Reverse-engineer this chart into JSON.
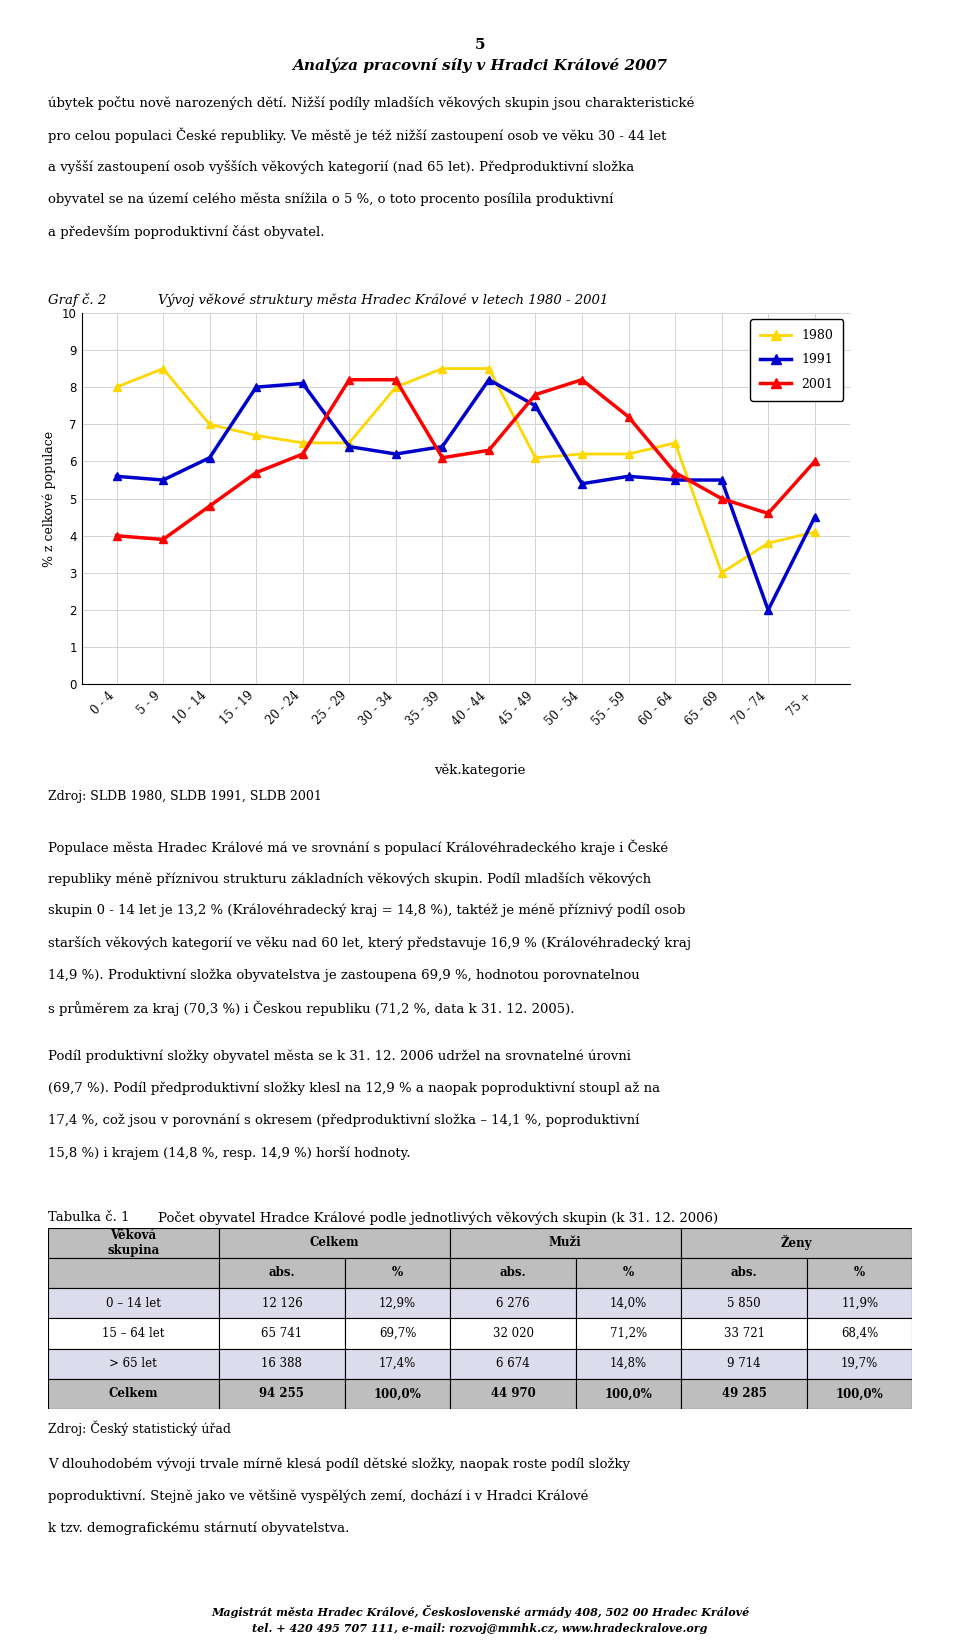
{
  "page_num": "5",
  "page_title": "Analýza pracovní síly v Hradci Králové 2007",
  "graf_label": "Graf č. 2",
  "graf_title": "Vývoj věkové struktury města Hradec Králové v letech 1980 - 2001",
  "zdroj_graf": "Zdroj: SLDB 1980, SLDB 1991, SLDB 2001",
  "categories": [
    "0 - 4",
    "5 - 9",
    "10 - 14",
    "15 - 19",
    "20 - 24",
    "25 - 29",
    "30 - 34",
    "35 - 39",
    "40 - 44",
    "45 - 49",
    "50 - 54",
    "55 - 59",
    "60 - 64",
    "65 - 69",
    "70 - 74",
    "75 +"
  ],
  "data_1980": [
    8.0,
    8.5,
    7.0,
    6.7,
    6.5,
    6.5,
    8.0,
    8.5,
    8.5,
    6.1,
    6.2,
    6.2,
    6.5,
    3.0,
    3.8,
    4.1
  ],
  "data_1991": [
    5.6,
    5.5,
    6.1,
    8.0,
    8.1,
    6.4,
    6.2,
    6.4,
    8.2,
    7.5,
    5.4,
    5.6,
    5.5,
    5.5,
    2.0,
    4.5
  ],
  "data_2001": [
    4.0,
    3.9,
    4.8,
    5.7,
    6.2,
    8.2,
    8.2,
    6.1,
    6.3,
    7.8,
    8.2,
    7.2,
    5.7,
    5.0,
    4.6,
    6.0
  ],
  "color_1980": "#FFD700",
  "color_1991": "#0000CD",
  "color_2001": "#FF0000",
  "ylabel": "% z celkové populace",
  "xlabel": "věk.kategorie",
  "ylim": [
    0,
    10
  ],
  "yticks": [
    0,
    1,
    2,
    3,
    4,
    5,
    6,
    7,
    8,
    9,
    10
  ],
  "intro_lines": [
    "úbytek počtu nově narozených dětí. Nižší podíly mladších věkových skupin jsou charakteristické",
    "pro celou populaci České republiky. Ve městě je též nižší zastoupení osob ve věku 30 - 44 let",
    "a vyšší zastoupení osob vyšších věkových kategorií (nad 65 let). Předproduktivní složka",
    "obyvatel se na území celého města snížila o 5 %, o toto procento posílila produktivní",
    "a především poproduktivní část obyvatel."
  ],
  "para1_lines": [
    "Populace města Hradec Králové má ve srovnání s populací Královéhradeckého kraje i České",
    "republiky méně příznivou strukturu základních věkových skupin. Podíl mladších věkových",
    "skupin 0 - 14 let je 13,2 % (Královéhradecký kraj = 14,8 %), taktéž je méně příznivý podíl osob",
    "starších věkových kategorií ve věku nad 60 let, který představuje 16,9 % (Královéhradecký kraj",
    "14,9 %). Produktivní složka obyvatelstva je zastoupena 69,9 %, hodnotou porovnatelnou",
    "s průměrem za kraj (70,3 %) i Českou republiku (71,2 %, data k 31. 12. 2005)."
  ],
  "para2_lines": [
    "Podíl produktivní složky obyvatel města se k 31. 12. 2006 udržel na srovnatelné úrovni",
    "(69,7 %). Podíl předproduktivní složky klesl na 12,9 % a naopak poproduktivní stoupl až na",
    "17,4 %, což jsou v porovnání s okresem (předproduktivní složka – 14,1 %, poproduktivní",
    "15,8 %) i krajem (14,8 %, resp. 14,9 %) horší hodnoty."
  ],
  "tabulka_label": "Tabulka č. 1",
  "tabulka_title": "Počet obyvatel Hradce Králové podle jednotlivých věkových skupin (k 31. 12. 2006)",
  "table_header2": [
    "",
    "abs.",
    "%",
    "abs.",
    "%",
    "abs.",
    "%"
  ],
  "table_rows": [
    [
      "0 – 14 let",
      "12 126",
      "12,9%",
      "6 276",
      "14,0%",
      "5 850",
      "11,9%"
    ],
    [
      "15 – 64 let",
      "65 741",
      "69,7%",
      "32 020",
      "71,2%",
      "33 721",
      "68,4%"
    ],
    [
      "> 65 let",
      "16 388",
      "17,4%",
      "6 674",
      "14,8%",
      "9 714",
      "19,7%"
    ],
    [
      "Celkem",
      "94 255",
      "100,0%",
      "44 970",
      "100,0%",
      "49 285",
      "100,0%"
    ]
  ],
  "zdroj_tabulka": "Zdroj: Český statistický úřad",
  "para3_lines": [
    "V dlouhodobém vývoji trvale mírně klesá podíl dětské složky, naopak roste podíl složky",
    "poproduktivní. Stejně jako ve většině vyspělých zemí, dochází i v Hradci Králové",
    "k tzv. demografickému stárnutí obyvatelstva."
  ],
  "footer_line1": "Magistrát města Hradec Králové, Československé armády 408, 502 00 Hradec Králové",
  "footer_line2": "tel. + 420 495 707 111, e-mail: rozvoj@mmhk.cz, www.hradeckralove.org"
}
